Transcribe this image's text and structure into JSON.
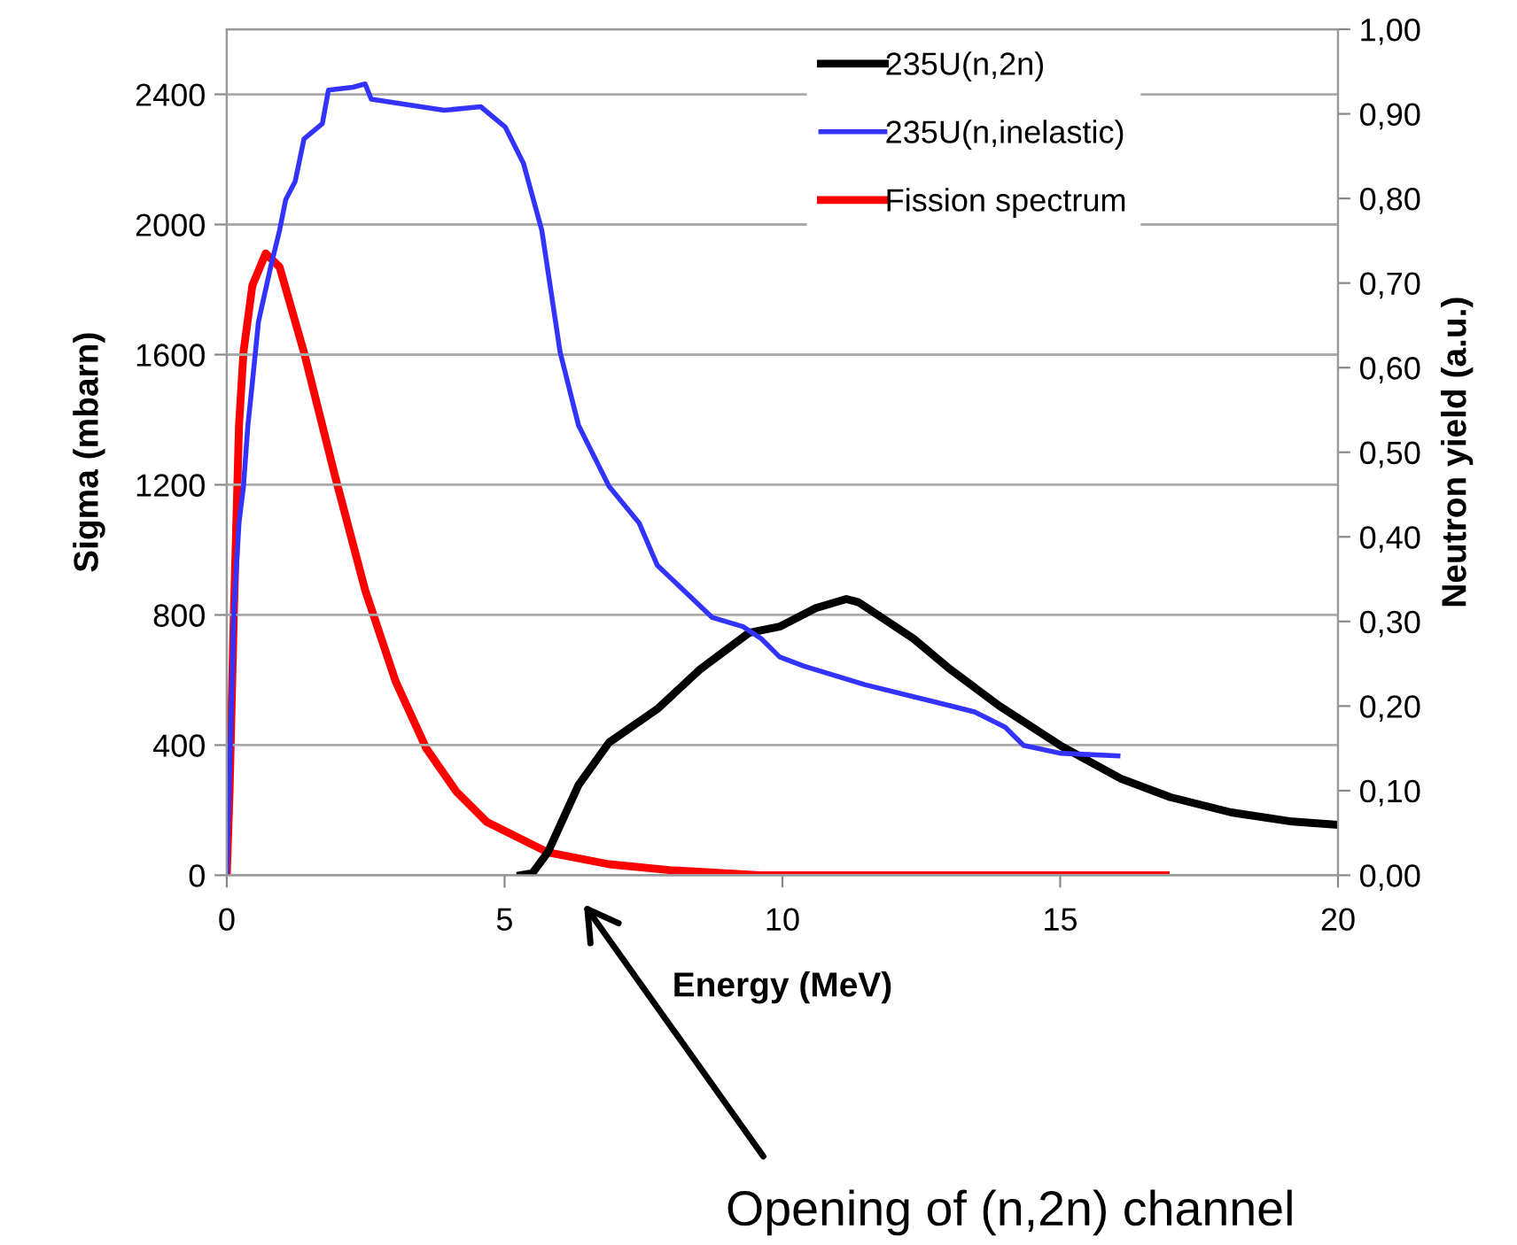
{
  "chart_data": {
    "type": "line",
    "xlabel": "Energy (MeV)",
    "ylabel": "Sigma (mbarn)",
    "y2label": "Neutron yield (a.u.)",
    "xlim": [
      0,
      20
    ],
    "xticks": [
      0,
      5,
      10,
      15,
      20
    ],
    "ylim": [
      0,
      2600
    ],
    "yticks": [
      0,
      400,
      800,
      1200,
      1600,
      2000,
      2400
    ],
    "y2lim": [
      0,
      1
    ],
    "y2ticks": [
      {
        "value": 0,
        "label": "0,00"
      },
      {
        "value": 0.1,
        "label": "0,10"
      },
      {
        "value": 0.2,
        "label": "0,20"
      },
      {
        "value": 0.3,
        "label": "0,30"
      },
      {
        "value": 0.4,
        "label": "0,40"
      },
      {
        "value": 0.5,
        "label": "0,50"
      },
      {
        "value": 0.6,
        "label": "0,60"
      },
      {
        "value": 0.7,
        "label": "0,70"
      },
      {
        "value": 0.8,
        "label": "0,80"
      },
      {
        "value": 0.9,
        "label": "0,90"
      },
      {
        "value": 1,
        "label": "1,00"
      }
    ],
    "grid": "y",
    "legend": "top right",
    "marker": "none",
    "line_style": "solid",
    "series": [
      {
        "name": "235U(n,2n)",
        "color": "#000000",
        "x": [
          5.29,
          5.5,
          5.78,
          6.33,
          6.88,
          7.75,
          8.52,
          9.4,
          9.95,
          10.6,
          11.15,
          11.37,
          12.36,
          13.02,
          13.9,
          15,
          16.1,
          16.98,
          18.08,
          19.18,
          20
        ],
        "values": [
          0,
          6,
          71,
          277,
          408,
          511,
          633,
          745,
          764,
          821,
          849,
          839,
          727,
          633,
          521,
          399,
          296,
          240,
          193,
          165,
          155
        ]
      },
      {
        "name": "235U(n,inelastic)",
        "color": "#3333ff",
        "x": [
          0,
          0.13,
          0.22,
          0.3,
          0.38,
          0.46,
          0.57,
          0.79,
          0.95,
          1.06,
          1.23,
          1.39,
          1.72,
          1.83,
          2.27,
          2.49,
          2.6,
          3.91,
          4.57,
          5.01,
          5.34,
          5.67,
          6.0,
          6.33,
          6.88,
          7.42,
          7.75,
          8.74,
          9.29,
          9.62,
          9.95,
          10.38,
          11.48,
          13.02,
          13.46,
          14.01,
          14.34,
          15,
          16.04
        ],
        "values": [
          0,
          820,
          1083,
          1195,
          1383,
          1514,
          1701,
          1870,
          1982,
          2076,
          2132,
          2263,
          2310,
          2413,
          2422,
          2432,
          2385,
          2351,
          2362,
          2300,
          2188,
          1982,
          1607,
          1383,
          1195,
          1083,
          952,
          792,
          764,
          727,
          671,
          643,
          586,
          521,
          502,
          455,
          399,
          375,
          367
        ]
      },
      {
        "name": "Fission spectrum",
        "color": "#ff0000",
        "axis": "y2",
        "x": [
          0,
          0.05,
          0.13,
          0.22,
          0.3,
          0.46,
          0.7,
          0.95,
          1.39,
          1.94,
          2.49,
          3.04,
          3.59,
          4.13,
          4.68,
          5.78,
          6.88,
          7.97,
          9.6,
          12,
          16.9
        ],
        "values": [
          0,
          0.099,
          0.316,
          0.532,
          0.618,
          0.697,
          0.735,
          0.719,
          0.618,
          0.474,
          0.337,
          0.229,
          0.15,
          0.099,
          0.063,
          0.027,
          0.013,
          0.006,
          0,
          0,
          0
        ]
      }
    ],
    "annotations": [
      "Opening of (n,2n) channel"
    ]
  }
}
